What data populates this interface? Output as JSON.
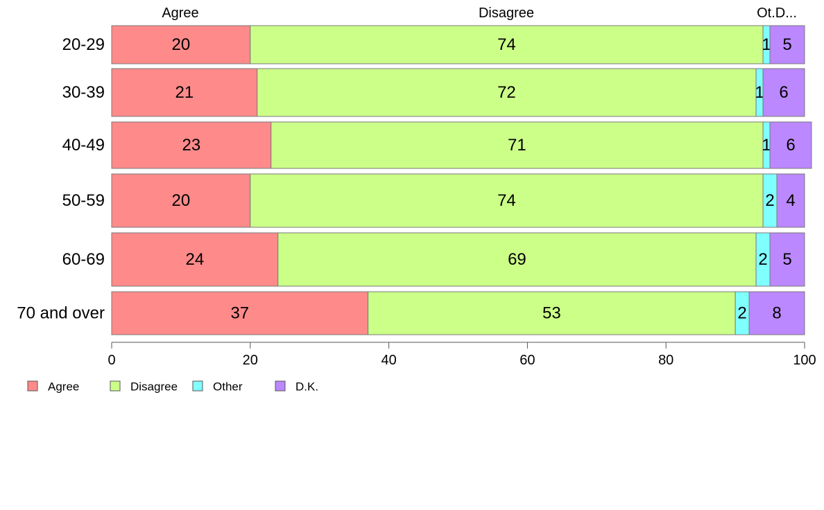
{
  "chart_data": {
    "type": "bar",
    "orientation": "horizontal",
    "stacked": true,
    "categories": [
      "20-29",
      "30-39",
      "40-49",
      "50-59",
      "60-69",
      "70 and over"
    ],
    "series": [
      {
        "name": "Agree",
        "color": "#FF8A8A",
        "values": [
          20,
          21,
          23,
          20,
          24,
          37
        ]
      },
      {
        "name": "Disagree",
        "color": "#CCFF88",
        "values": [
          74,
          72,
          71,
          74,
          69,
          53
        ]
      },
      {
        "name": "Other",
        "color": "#80FFFF",
        "values": [
          1,
          1,
          1,
          2,
          2,
          2
        ]
      },
      {
        "name": "D.K.",
        "color": "#BB88FF",
        "values": [
          5,
          6,
          6,
          4,
          5,
          8
        ]
      }
    ],
    "top_labels": [
      "Agree",
      "Disagree",
      "Ot.D..."
    ],
    "xlim": [
      0,
      100
    ],
    "xticks": [
      0,
      20,
      40,
      60,
      80,
      100
    ],
    "legend_position": "bottom-left",
    "grid": false
  }
}
